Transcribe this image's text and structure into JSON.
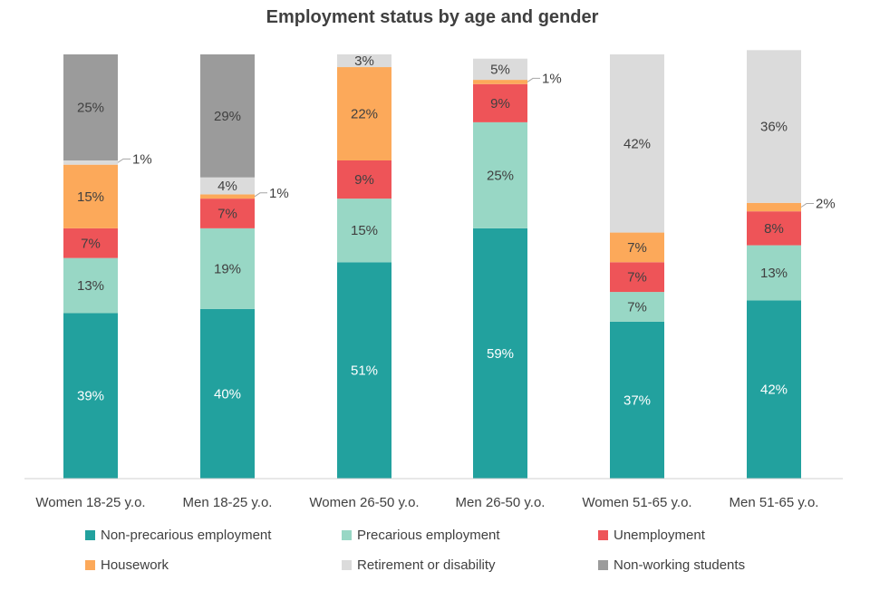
{
  "chart_data": {
    "type": "bar",
    "stacked": true,
    "title": "Employment status by age and gender",
    "categories": [
      "Women 18-25 y.o.",
      "Men 18-25 y.o.",
      "Women 26-50 y.o.",
      "Men 26-50 y.o.",
      "Women 51-65 y.o.",
      "Men 51-65 y.o."
    ],
    "value_unit": "%",
    "ylim": [
      0,
      100
    ],
    "grid": false,
    "legend_position": "bottom",
    "series": [
      {
        "name": "Non-precarious employment",
        "color": "#22A19E",
        "label_color": "#ffffff",
        "values": [
          39,
          40,
          51,
          59,
          37,
          42
        ]
      },
      {
        "name": "Precarious employment",
        "color": "#98D7C5",
        "label_color": "#404040",
        "values": [
          13,
          19,
          15,
          25,
          7,
          13
        ]
      },
      {
        "name": "Unemployment",
        "color": "#EE5458",
        "label_color": "#404040",
        "values": [
          7,
          7,
          9,
          9,
          7,
          8
        ]
      },
      {
        "name": "Housework",
        "color": "#FCA95A",
        "label_color": "#404040",
        "values": [
          15,
          1,
          22,
          1,
          7,
          2
        ]
      },
      {
        "name": "Retirement or disability",
        "color": "#DBDBDB",
        "label_color": "#404040",
        "values": [
          1,
          4,
          3,
          5,
          42,
          36
        ]
      },
      {
        "name": "Non-working students",
        "color": "#9B9B9B",
        "label_color": "#404040",
        "values": [
          25,
          29,
          0,
          0,
          0,
          0
        ]
      }
    ],
    "data_labels": [
      [
        "39%",
        "40%",
        "51%",
        "59%",
        "37%",
        "42%"
      ],
      [
        "13%",
        "19%",
        "15%",
        "25%",
        "7%",
        "13%"
      ],
      [
        "7%",
        "7%",
        "9%",
        "9%",
        "7%",
        "8%"
      ],
      [
        "15%",
        "1%",
        "22%",
        "1%",
        "7%",
        "2%"
      ],
      [
        "1%",
        "4%",
        "3%",
        "5%",
        "42%",
        "36%"
      ],
      [
        "25%",
        "29%",
        "",
        "",
        "",
        ""
      ]
    ],
    "callout_labels": [
      {
        "category": 0,
        "series": 4,
        "text": "1%"
      },
      {
        "category": 1,
        "series": 3,
        "text": "1%"
      },
      {
        "category": 3,
        "series": 3,
        "text": "1%"
      },
      {
        "category": 5,
        "series": 3,
        "text": "2%"
      }
    ]
  }
}
